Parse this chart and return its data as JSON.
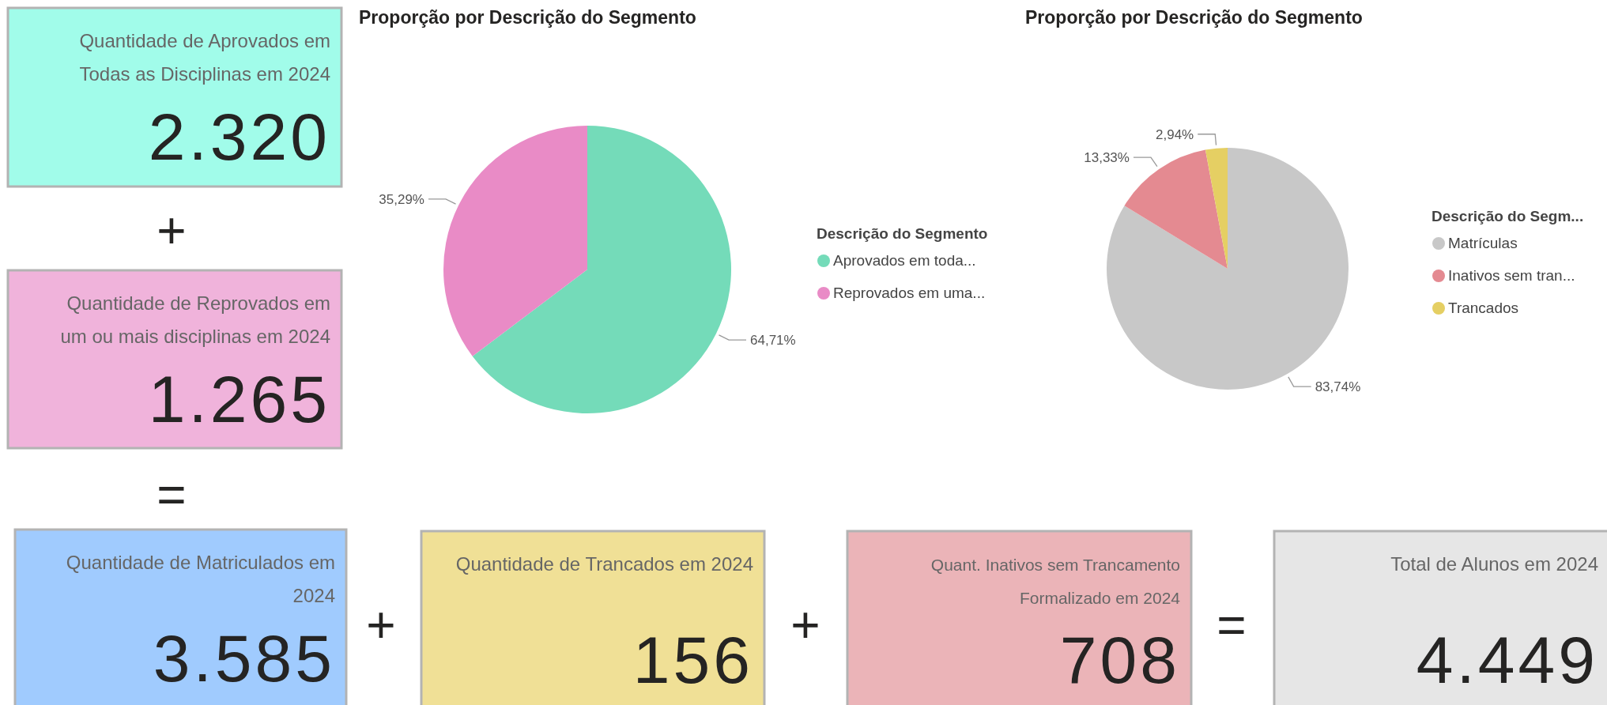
{
  "chart_data": [
    {
      "type": "other",
      "categories": [
        "Quantidade de Aprovados em Todas as Disciplinas em 2024",
        "Quantidade de Reprovados em um ou mais disciplinas em 2024",
        "Quantidade de Matriculados em 2024",
        "Quantidade de Trancados em 2024",
        "Quant. Inativos sem Trancamento Formalizado em 2024",
        "Total de Alunos em 2024"
      ],
      "value_labels": [
        "2.320",
        "1.265",
        "3.585",
        "156",
        "708",
        "4.449"
      ],
      "colors": [
        "#a1fcea",
        "#f0b3db",
        "#a0cbfe",
        "#f0e096",
        "#ebb4b8",
        "#e6e6e6"
      ],
      "annotations": [
        "+",
        "=",
        "+",
        "+",
        "="
      ]
    },
    {
      "type": "pie",
      "title": "Proporção por Descrição do Segmento",
      "legend_title": "Descrição do Segmento",
      "legend": "right",
      "categories": [
        "Aprovados em toda...",
        "Reprovados em uma..."
      ],
      "values": [
        64.71,
        35.29
      ],
      "colors": [
        "#74dbb9",
        "#e98bc6"
      ],
      "value_labels": [
        "64,71%",
        "35,29%"
      ]
    },
    {
      "type": "pie",
      "title": "Proporção por Descrição do Segmento",
      "legend_title": "Descrição do Segm...",
      "legend": "right",
      "categories": [
        "Matrículas",
        "Inativos sem tran...",
        "Trancados"
      ],
      "values": [
        83.74,
        13.33,
        2.94
      ],
      "colors": [
        "#c8c8c8",
        "#e48a91",
        "#e5cf63"
      ],
      "value_labels": [
        "83,74%",
        "13,33%",
        "2,94%"
      ]
    }
  ]
}
